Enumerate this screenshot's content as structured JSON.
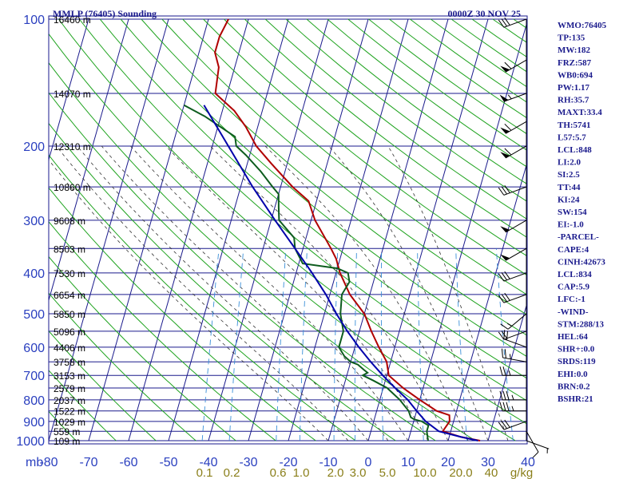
{
  "header": {
    "station_title": "MMLP (76405) Sounding",
    "time_label": "0000Z 30 NOV 25"
  },
  "indices": [
    "WMO:76405",
    "TP:135",
    "MW:182",
    "FRZ:587",
    "WB0:694",
    "PW:1.17",
    "RH:35.7",
    "MAXT:33.4",
    "TH:5741",
    "L57:5.7",
    "LCL:848",
    "LI:2.0",
    "SI:2.5",
    "TT:44",
    "KI:24",
    "SW:154",
    "EI:-1.0",
    "-PARCEL-",
    "CAPE:4",
    "CINH:42673",
    "LCL:834",
    "CAP:5.9",
    "LFC:-1",
    "-WIND-",
    "STM:288/13",
    "HEL:64",
    "SHR+:0.0",
    "SRDS:119",
    "EHI:0.0",
    "BRN:0.2",
    "BSHR:21"
  ],
  "chart_data": {
    "type": "line",
    "diagram": "skew-T log-P",
    "x_axis": {
      "units_label": "mb",
      "ticks": [
        -80,
        -70,
        -60,
        -50,
        -40,
        -30,
        -20,
        -10,
        0,
        10,
        20,
        30,
        40
      ],
      "range": [
        -80,
        40
      ]
    },
    "y_axis": {
      "scale": "log",
      "ticks": [
        100,
        200,
        300,
        400,
        500,
        600,
        700,
        800,
        900,
        1000
      ],
      "range": [
        100,
        1000
      ]
    },
    "mixing_ratio_labels": [
      "0.1",
      "0.2",
      "0.6",
      "1.0",
      "2.0",
      "3.0",
      "5.0",
      "10.0",
      "20.0",
      "40",
      "g/kg"
    ],
    "mixing_ratio_values": [
      0.1,
      0.2,
      0.6,
      1.0,
      2.0,
      3.0,
      5.0,
      10.0,
      20.0,
      40
    ],
    "height_labels": [
      {
        "p": 100,
        "text": "16460 m"
      },
      {
        "p": 150,
        "text": "14070 m"
      },
      {
        "p": 200,
        "text": "12310 m"
      },
      {
        "p": 250,
        "text": "10860 m"
      },
      {
        "p": 300,
        "text": "9608 m"
      },
      {
        "p": 350,
        "text": "8503 m"
      },
      {
        "p": 400,
        "text": "7530 m"
      },
      {
        "p": 450,
        "text": "6654 m"
      },
      {
        "p": 500,
        "text": "5850 m"
      },
      {
        "p": 550,
        "text": "5096 m"
      },
      {
        "p": 600,
        "text": "4406 m"
      },
      {
        "p": 650,
        "text": "3758 m"
      },
      {
        "p": 700,
        "text": "3153 m"
      },
      {
        "p": 750,
        "text": "2579 m"
      },
      {
        "p": 800,
        "text": "2037 m"
      },
      {
        "p": 850,
        "text": "1522 m"
      },
      {
        "p": 900,
        "text": "1029 m"
      },
      {
        "p": 950,
        "text": "559 m"
      },
      {
        "p": 1000,
        "text": "109 m"
      }
    ],
    "series": [
      {
        "role": "temperature",
        "color": "#b00000",
        "points": [
          [
            1000,
            28
          ],
          [
            980,
            23
          ],
          [
            950,
            18
          ],
          [
            900,
            19
          ],
          [
            870,
            18.5
          ],
          [
            850,
            15
          ],
          [
            800,
            10
          ],
          [
            750,
            5
          ],
          [
            700,
            0.5
          ],
          [
            650,
            -1
          ],
          [
            600,
            -4
          ],
          [
            550,
            -7
          ],
          [
            500,
            -10
          ],
          [
            450,
            -15
          ],
          [
            400,
            -19
          ],
          [
            370,
            -21
          ],
          [
            350,
            -23
          ],
          [
            300,
            -29
          ],
          [
            270,
            -32
          ],
          [
            250,
            -37
          ],
          [
            220,
            -44
          ],
          [
            200,
            -49
          ],
          [
            180,
            -53
          ],
          [
            165,
            -57
          ],
          [
            150,
            -63
          ],
          [
            130,
            -64
          ],
          [
            120,
            -66
          ],
          [
            110,
            -66
          ],
          [
            100,
            -65
          ]
        ]
      },
      {
        "role": "dewpoint",
        "color": "#0d5c1e",
        "points": [
          [
            1000,
            15
          ],
          [
            950,
            14
          ],
          [
            920,
            14
          ],
          [
            900,
            12
          ],
          [
            890,
            10
          ],
          [
            880,
            9
          ],
          [
            850,
            8
          ],
          [
            800,
            5
          ],
          [
            750,
            1
          ],
          [
            720,
            -3
          ],
          [
            700,
            -6
          ],
          [
            690,
            -5
          ],
          [
            680,
            -6
          ],
          [
            660,
            -8
          ],
          [
            650,
            -10
          ],
          [
            630,
            -12
          ],
          [
            600,
            -14
          ],
          [
            550,
            -14
          ],
          [
            500,
            -16
          ],
          [
            450,
            -17
          ],
          [
            420,
            -16
          ],
          [
            400,
            -17
          ],
          [
            390,
            -20
          ],
          [
            380,
            -29
          ],
          [
            350,
            -32
          ],
          [
            330,
            -33
          ],
          [
            300,
            -38
          ],
          [
            280,
            -39
          ],
          [
            260,
            -40
          ],
          [
            250,
            -42
          ],
          [
            230,
            -46
          ],
          [
            210,
            -51
          ],
          [
            200,
            -54
          ],
          [
            190,
            -55
          ],
          [
            170,
            -64
          ],
          [
            160,
            -70
          ]
        ]
      },
      {
        "role": "parcel",
        "color": "#0000aa",
        "points": [
          [
            1000,
            27.5
          ],
          [
            980,
            23
          ],
          [
            950,
            17
          ],
          [
            900,
            13
          ],
          [
            850,
            10
          ],
          [
            800,
            7
          ],
          [
            750,
            3
          ],
          [
            700,
            -1
          ],
          [
            650,
            -5
          ],
          [
            600,
            -9
          ],
          [
            550,
            -13
          ],
          [
            500,
            -17
          ],
          [
            450,
            -21
          ],
          [
            400,
            -26
          ],
          [
            350,
            -32
          ],
          [
            300,
            -39
          ],
          [
            250,
            -47
          ],
          [
            200,
            -56
          ],
          [
            160,
            -65
          ]
        ]
      }
    ],
    "winds": [
      {
        "p": 1000,
        "dir": 110,
        "spd": 5
      },
      {
        "p": 950,
        "dir": 150,
        "spd": 10
      },
      {
        "p": 900,
        "dir": 250,
        "spd": 30
      },
      {
        "p": 850,
        "dir": 270,
        "spd": 35
      },
      {
        "p": 800,
        "dir": 270,
        "spd": 35
      },
      {
        "p": 700,
        "dir": 270,
        "spd": 25
      },
      {
        "p": 650,
        "dir": 280,
        "spd": 25
      },
      {
        "p": 600,
        "dir": 290,
        "spd": 20
      },
      {
        "p": 550,
        "dir": 250,
        "spd": 20
      },
      {
        "p": 500,
        "dir": 230,
        "spd": 15
      },
      {
        "p": 450,
        "dir": 250,
        "spd": 30
      },
      {
        "p": 400,
        "dir": 250,
        "spd": 30
      },
      {
        "p": 350,
        "dir": 240,
        "spd": 50
      },
      {
        "p": 300,
        "dir": 240,
        "spd": 50
      },
      {
        "p": 250,
        "dir": 250,
        "spd": 30
      },
      {
        "p": 200,
        "dir": 240,
        "spd": 60
      },
      {
        "p": 175,
        "dir": 240,
        "spd": 60
      },
      {
        "p": 150,
        "dir": 250,
        "spd": 55
      },
      {
        "p": 125,
        "dir": 240,
        "spd": 60
      },
      {
        "p": 100,
        "dir": 250,
        "spd": 30
      }
    ]
  }
}
